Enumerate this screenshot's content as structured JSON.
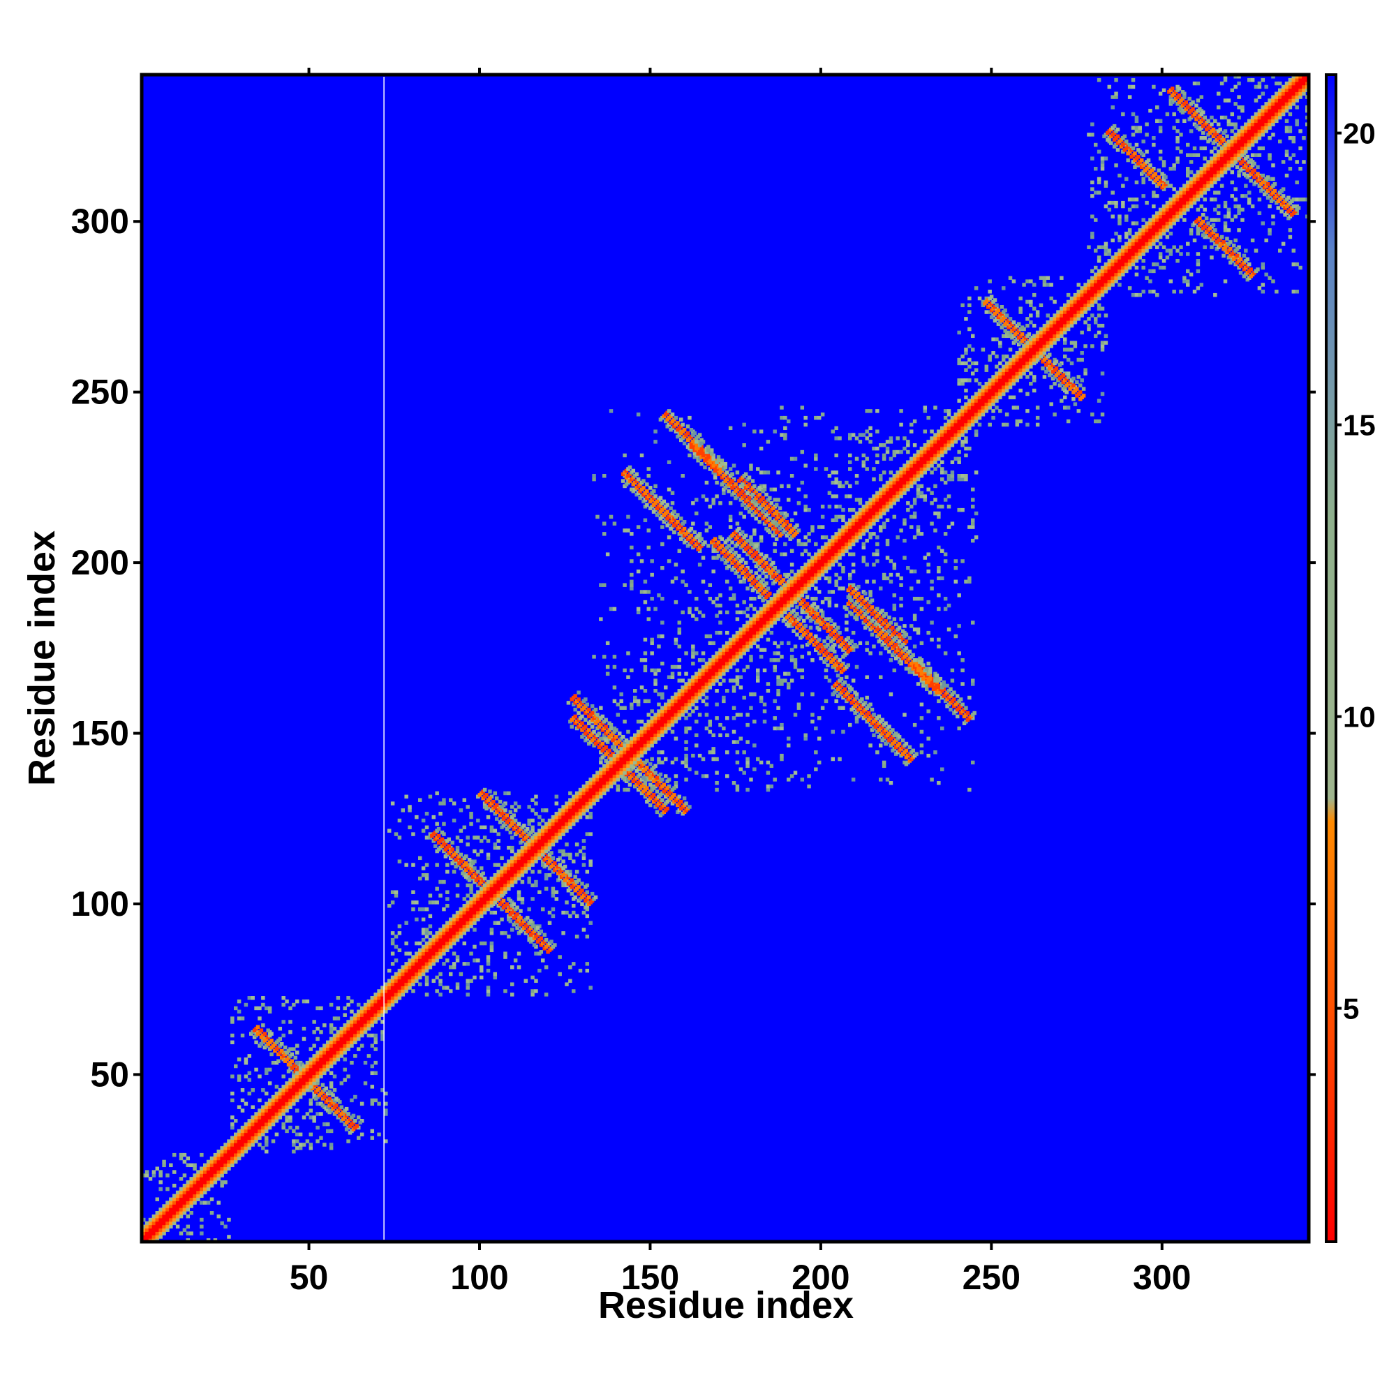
{
  "chart_data": {
    "type": "heatmap",
    "title": "",
    "xlabel": "Residue index",
    "ylabel": "Residue index",
    "xlim": [
      1,
      343
    ],
    "ylim": [
      1,
      343
    ],
    "xticks": [
      50,
      100,
      150,
      200,
      250,
      300
    ],
    "yticks": [
      50,
      100,
      150,
      200,
      250,
      300
    ],
    "x_tick_labels": [
      "50",
      "100",
      "150",
      "200",
      "250",
      "300"
    ],
    "y_tick_labels": [
      "50",
      "100",
      "150",
      "200",
      "250",
      "300"
    ],
    "grid": false,
    "legend": "colorbar-right",
    "colorbar": {
      "range": [
        1,
        21
      ],
      "ticks": [
        5,
        10,
        15,
        20
      ],
      "tick_labels": [
        "5",
        "10",
        "15",
        "20"
      ],
      "colors": [
        "#ff0000",
        "#ff7a00",
        "#8fb08c",
        "#5a82c8",
        "#0000ff"
      ]
    },
    "gap_residue": 72,
    "domains": [
      [
        1,
        26
      ],
      [
        27,
        72
      ],
      [
        73,
        132
      ],
      [
        133,
        245
      ],
      [
        240,
        283
      ],
      [
        278,
        343
      ]
    ],
    "contacts": [
      {
        "x": 42,
        "y": 55
      },
      {
        "x": 55,
        "y": 42
      },
      {
        "x": 94,
        "y": 112
      },
      {
        "x": 112,
        "y": 94
      },
      {
        "x": 108,
        "y": 124
      },
      {
        "x": 124,
        "y": 108
      },
      {
        "x": 135,
        "y": 152
      },
      {
        "x": 152,
        "y": 135
      },
      {
        "x": 146,
        "y": 135
      },
      {
        "x": 135,
        "y": 146
      },
      {
        "x": 162,
        "y": 235
      },
      {
        "x": 235,
        "y": 162
      },
      {
        "x": 150,
        "y": 218
      },
      {
        "x": 218,
        "y": 150
      },
      {
        "x": 180,
        "y": 216
      },
      {
        "x": 216,
        "y": 180
      },
      {
        "x": 176,
        "y": 198
      },
      {
        "x": 198,
        "y": 176
      },
      {
        "x": 182,
        "y": 200
      },
      {
        "x": 200,
        "y": 182
      },
      {
        "x": 216,
        "y": 184
      },
      {
        "x": 184,
        "y": 216
      },
      {
        "x": 226,
        "y": 170
      },
      {
        "x": 170,
        "y": 226
      },
      {
        "x": 212,
        "y": 156
      },
      {
        "x": 156,
        "y": 212
      },
      {
        "x": 256,
        "y": 268
      },
      {
        "x": 268,
        "y": 256
      },
      {
        "x": 292,
        "y": 318
      },
      {
        "x": 318,
        "y": 292
      },
      {
        "x": 310,
        "y": 330
      },
      {
        "x": 330,
        "y": 310
      }
    ]
  }
}
